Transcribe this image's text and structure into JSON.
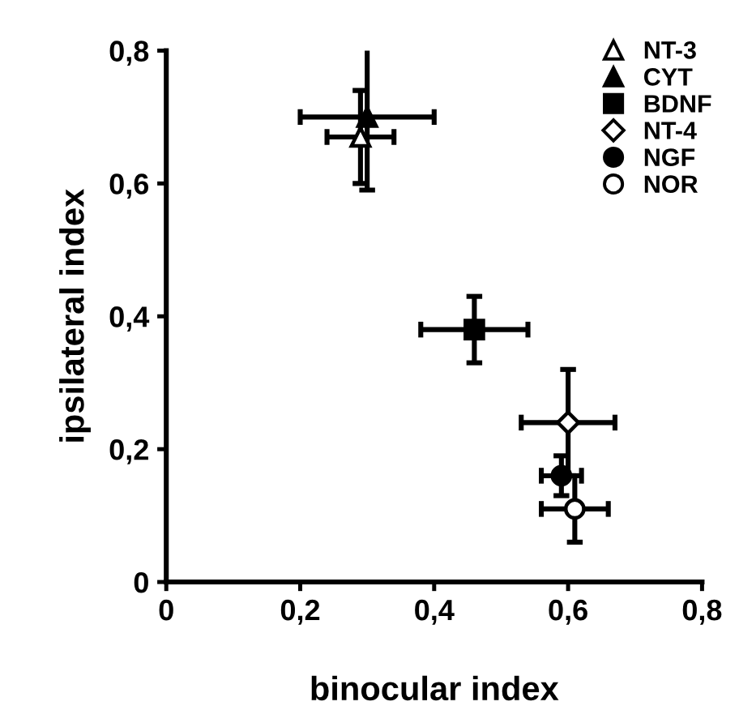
{
  "chart_data": {
    "type": "scatter",
    "xlabel": "binocular index",
    "ylabel": "ipsilateral index",
    "xlim": [
      0,
      0.8
    ],
    "ylim": [
      0,
      0.8
    ],
    "xticks": [
      0,
      {
        "value": 0.2,
        "label": "0,2"
      },
      {
        "value": 0.4,
        "label": "0,4"
      },
      {
        "value": 0.6,
        "label": "0,6"
      },
      {
        "value": 0.8,
        "label": "0,8"
      }
    ],
    "yticks": [
      0,
      {
        "value": 0.2,
        "label": "0,2"
      },
      {
        "value": 0.4,
        "label": "0,4"
      },
      {
        "value": 0.6,
        "label": "0,6"
      },
      {
        "value": 0.8,
        "label": "0,8"
      }
    ],
    "grid": false,
    "legend": "top right",
    "series": [
      {
        "name": "NT-3",
        "color": "#000000",
        "colors": [
          "#ffffff"
        ],
        "marker": "triangle",
        "x": [
          0.29
        ],
        "values": [
          0.67
        ],
        "errors": [
          0.07
        ],
        "xerrors": [
          0.05
        ]
      },
      {
        "name": "CYT",
        "color": "#000000",
        "marker": "triangle",
        "x": [
          0.3
        ],
        "values": [
          0.7
        ],
        "errors": [
          0.11
        ],
        "xerrors": [
          0.1
        ]
      },
      {
        "name": "BDNF",
        "color": "#000000",
        "marker": "square",
        "x": [
          0.46
        ],
        "values": [
          0.38
        ],
        "errors": [
          0.05
        ],
        "xerrors": [
          0.08
        ]
      },
      {
        "name": "NT-4",
        "color": "#000000",
        "colors": [
          "#ffffff"
        ],
        "marker": "diamond",
        "x": [
          0.6
        ],
        "values": [
          0.24
        ],
        "errors": [
          0.08
        ],
        "xerrors": [
          0.07
        ]
      },
      {
        "name": "NGF",
        "color": "#000000",
        "marker": "circle",
        "x": [
          0.59
        ],
        "values": [
          0.16
        ],
        "errors": [
          0.03
        ],
        "xerrors": [
          0.03
        ]
      },
      {
        "name": "NOR",
        "color": "#000000",
        "colors": [
          "#ffffff"
        ],
        "marker": "circle",
        "x": [
          0.61
        ],
        "values": [
          0.11
        ],
        "errors": [
          0.05
        ],
        "xerrors": [
          0.05
        ]
      }
    ]
  }
}
